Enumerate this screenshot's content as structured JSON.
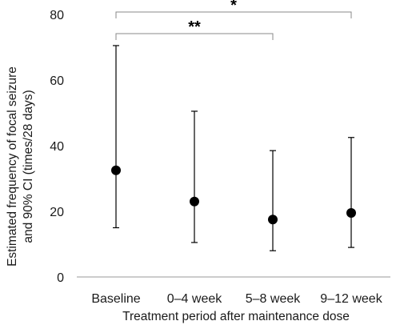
{
  "chart_data": {
    "type": "scatter",
    "title": "",
    "xlabel": "Treatment period after maintenance dose",
    "ylabel_lines": [
      "Estimated frequency of focal  seizure",
      "and 90% CI  (times/28 days)"
    ],
    "categories": [
      "Baseline",
      "0–4 week",
      "5–8 week",
      "9–12 week"
    ],
    "series": [
      {
        "values": [
          32.5,
          23,
          17.5,
          19.5
        ],
        "ci_lower": [
          15,
          10.5,
          8,
          9
        ],
        "ci_upper": [
          70.5,
          50.5,
          38.5,
          42.5
        ]
      }
    ],
    "ylim": [
      0,
      80
    ],
    "yticks": [
      0,
      20,
      40,
      60,
      80
    ],
    "grid": false,
    "legend": "none",
    "significance": [
      {
        "from": 0,
        "to": 3,
        "label": "*"
      },
      {
        "from": 0,
        "to": 2,
        "label": "**"
      }
    ],
    "colors": {
      "marker": "#000000",
      "axis": "#999999",
      "bracket": "#888888"
    }
  }
}
